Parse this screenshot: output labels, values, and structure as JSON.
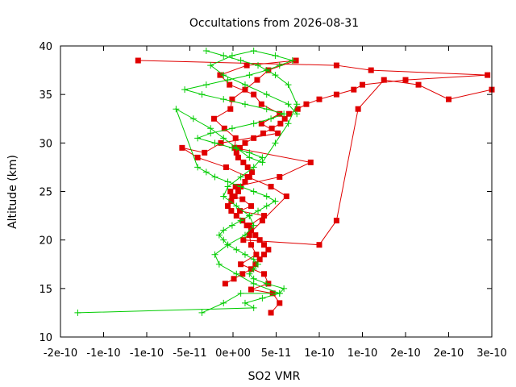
{
  "chart_data": {
    "type": "line",
    "title": "Occultations from 2026-08-31",
    "xlabel": "SO2 VMR",
    "ylabel": "Altitude (km)",
    "xlim": [
      -2e-10,
      3e-10
    ],
    "ylim": [
      10,
      40
    ],
    "x_ticks": [
      -2e-10,
      -1.5e-10,
      -1e-10,
      -5e-11,
      0,
      5e-11,
      1e-10,
      1.5e-10,
      2e-10,
      2.5e-10,
      3e-10
    ],
    "x_tick_labels": [
      "-2e-10",
      "-1e-10",
      "-1e-10",
      "-5e-11",
      "0e+00",
      "5e-11",
      "1e-10",
      "1e-10",
      "2e-10",
      "2e-10",
      "3e-10"
    ],
    "y_ticks": [
      10,
      15,
      20,
      25,
      30,
      35,
      40
    ],
    "y_tick_labels": [
      "10",
      "15",
      "20",
      "25",
      "30",
      "35",
      "40"
    ],
    "grid": false,
    "legend": "none",
    "colors": {
      "red_series": "#e00000",
      "green_series": "#00cc00"
    },
    "series": [
      {
        "name": "",
        "color": "#e00000",
        "marker": "square",
        "x": [
          4.4e-11,
          5.4e-11,
          4.6e-11,
          2.1e-11,
          4.1e-11,
          3.6e-11,
          9e-12,
          2.7e-11,
          2.1e-11,
          1.9e-11,
          1.9e-11,
          3.6e-11,
          8e-12,
          2.1e-11,
          1.1e-11,
          -1e-12,
          -3e-12,
          3e-12,
          5.4e-11,
          9e-11,
          2e-12,
          3e-12,
          -1e-11,
          -2.2e-11,
          -3e-12,
          -1e-12,
          1.4e-11,
          2.8e-11,
          4.1e-11,
          7.3e-11,
          1.6e-11,
          -1.5e-11,
          -4e-12,
          2.4e-11,
          3.3e-11,
          5.4e-11,
          3.3e-11,
          5.2e-11,
          -1.4e-11,
          -3.3e-11,
          -5.9e-11,
          -4.1e-11,
          -8e-12,
          1.7e-11,
          4.4e-11,
          6.2e-11,
          3.4e-11,
          1.2e-11,
          1e-10,
          1.2e-10,
          1.45e-10,
          1.75e-10,
          2.15e-10,
          2.5e-10,
          3e-10
        ],
        "y": [
          12.5,
          13.5,
          14.5,
          14.9,
          15.5,
          16.5,
          17.5,
          18.5,
          19.5,
          20.5,
          21.5,
          22.5,
          23.0,
          23.5,
          24.2,
          24.5,
          25.0,
          25.5,
          26.5,
          28.0,
          29.5,
          30.5,
          31.5,
          32.5,
          33.5,
          34.5,
          35.5,
          36.5,
          37.5,
          38.5,
          38.0,
          37.0,
          36.0,
          35.0,
          34.0,
          33.0,
          32.0,
          31.0,
          30.0,
          29.0,
          29.5,
          28.5,
          27.5,
          26.5,
          25.5,
          24.5,
          22.0,
          20.0,
          19.5,
          22.0,
          33.5,
          36.5,
          36.0,
          34.5,
          35.5
        ]
      },
      {
        "name": "",
        "color": "#e00000",
        "marker": "square",
        "x": [
          -1.1e-10,
          1.2e-10,
          1.6e-10,
          2.95e-10,
          2e-10,
          1.5e-10,
          1.4e-10,
          1.2e-10,
          1e-10,
          8.5e-11,
          7.5e-11,
          6.5e-11,
          6e-11,
          5.5e-11,
          4.5e-11,
          3.5e-11,
          2.4e-11,
          1.4e-11,
          8e-12,
          4e-12,
          6e-12,
          1.2e-11,
          1.7e-11,
          2.2e-11,
          1.9e-11,
          1.4e-11,
          9e-12,
          6e-12,
          2e-12,
          -2e-12,
          -6e-12,
          -2e-12,
          4e-12,
          1.1e-11,
          1.6e-11,
          2.1e-11,
          2.6e-11,
          3.1e-11,
          3.6e-11,
          4.1e-11,
          3.6e-11,
          3.1e-11,
          2.6e-11,
          2.1e-11,
          1.1e-11,
          1e-12,
          -9e-12
        ],
        "y": [
          38.5,
          38.0,
          37.5,
          37.0,
          36.5,
          36.0,
          35.5,
          35.0,
          34.5,
          34.0,
          33.5,
          33.0,
          32.5,
          32.0,
          31.5,
          31.0,
          30.5,
          30.0,
          29.5,
          29.0,
          28.5,
          28.0,
          27.5,
          27.0,
          26.5,
          26.0,
          25.5,
          25.0,
          24.5,
          24.0,
          23.5,
          23.0,
          22.5,
          22.0,
          21.5,
          21.0,
          20.5,
          20.0,
          19.5,
          19.0,
          18.5,
          18.0,
          17.5,
          17.0,
          16.5,
          16.0,
          15.5
        ]
      },
      {
        "name": "",
        "color": "#00cc00",
        "marker": "plus",
        "x": [
          -1.8e-10,
          2.4e-11,
          1.4e-11,
          3.4e-11,
          5.4e-11,
          5.9e-11,
          3.9e-11,
          2.4e-11,
          1.9e-11,
          2.4e-11,
          2.9e-11,
          2.4e-11,
          1.4e-11,
          4e-12,
          -6e-12,
          -1.1e-11,
          -1.6e-11,
          -1.1e-11,
          -1e-12,
          9e-12,
          1.9e-11,
          2.9e-11,
          3.9e-11,
          4.9e-11,
          3.9e-11,
          2.4e-11,
          9e-12,
          -6e-12,
          -2.1e-11,
          -3.1e-11,
          -4.1e-11,
          -6.6e-11,
          -4.6e-11,
          -2.6e-11,
          -1.1e-11,
          4e-12,
          1.9e-11,
          3.4e-11,
          4.9e-11,
          6.4e-11,
          7.4e-11,
          6.4e-11,
          4.9e-11,
          2.9e-11,
          9e-12,
          -1.1e-11,
          -3.1e-11
        ],
        "y": [
          12.5,
          13.0,
          13.5,
          14.0,
          14.5,
          15.0,
          15.5,
          16.0,
          16.5,
          17.0,
          17.5,
          18.0,
          18.5,
          19.0,
          19.5,
          20.0,
          20.5,
          21.0,
          21.5,
          22.0,
          22.5,
          23.0,
          23.5,
          24.0,
          24.5,
          25.0,
          25.5,
          26.0,
          26.5,
          27.0,
          27.5,
          33.5,
          32.5,
          31.5,
          30.5,
          29.5,
          28.5,
          28.0,
          30.0,
          32.0,
          34.0,
          36.0,
          37.0,
          38.0,
          38.5,
          39.0,
          39.5
        ]
      },
      {
        "name": "",
        "color": "#00cc00",
        "marker": "plus",
        "x": [
          -3.6e-11,
          -1.1e-11,
          9e-12,
          5.4e-11,
          2.4e-11,
          4e-12,
          -1.6e-11,
          -2.1e-11,
          -6e-12,
          1.4e-11,
          2.4e-11,
          1.9e-11,
          4e-12,
          -1.1e-11,
          -6e-12,
          9e-12,
          2.4e-11,
          3.4e-11,
          1.9e-11,
          -1e-12,
          -2.1e-11,
          -4.1e-11,
          -2.6e-11,
          -1e-12,
          2.4e-11,
          4.4e-11,
          5.9e-11,
          3.9e-11,
          1.4e-11,
          -1.1e-11,
          -3.6e-11,
          -5.6e-11,
          -3.1e-11,
          -6e-12,
          1.9e-11,
          3.9e-11,
          5.4e-11,
          6.9e-11,
          4.9e-11,
          2.4e-11,
          -1e-12,
          -2.6e-11,
          -1.1e-11,
          1.4e-11,
          3.9e-11,
          6.4e-11,
          7.4e-11
        ],
        "y": [
          12.5,
          13.5,
          14.5,
          14.5,
          15.5,
          16.5,
          17.5,
          18.5,
          19.5,
          20.5,
          21.5,
          22.5,
          23.5,
          24.5,
          25.5,
          26.5,
          27.5,
          28.5,
          29.0,
          29.5,
          30.0,
          30.5,
          31.0,
          31.5,
          32.0,
          32.5,
          33.0,
          33.5,
          34.0,
          34.5,
          35.0,
          35.5,
          36.0,
          36.5,
          37.0,
          37.5,
          38.0,
          38.5,
          39.0,
          39.5,
          39.0,
          38.0,
          37.0,
          36.0,
          35.0,
          34.0,
          33.0
        ]
      }
    ]
  }
}
